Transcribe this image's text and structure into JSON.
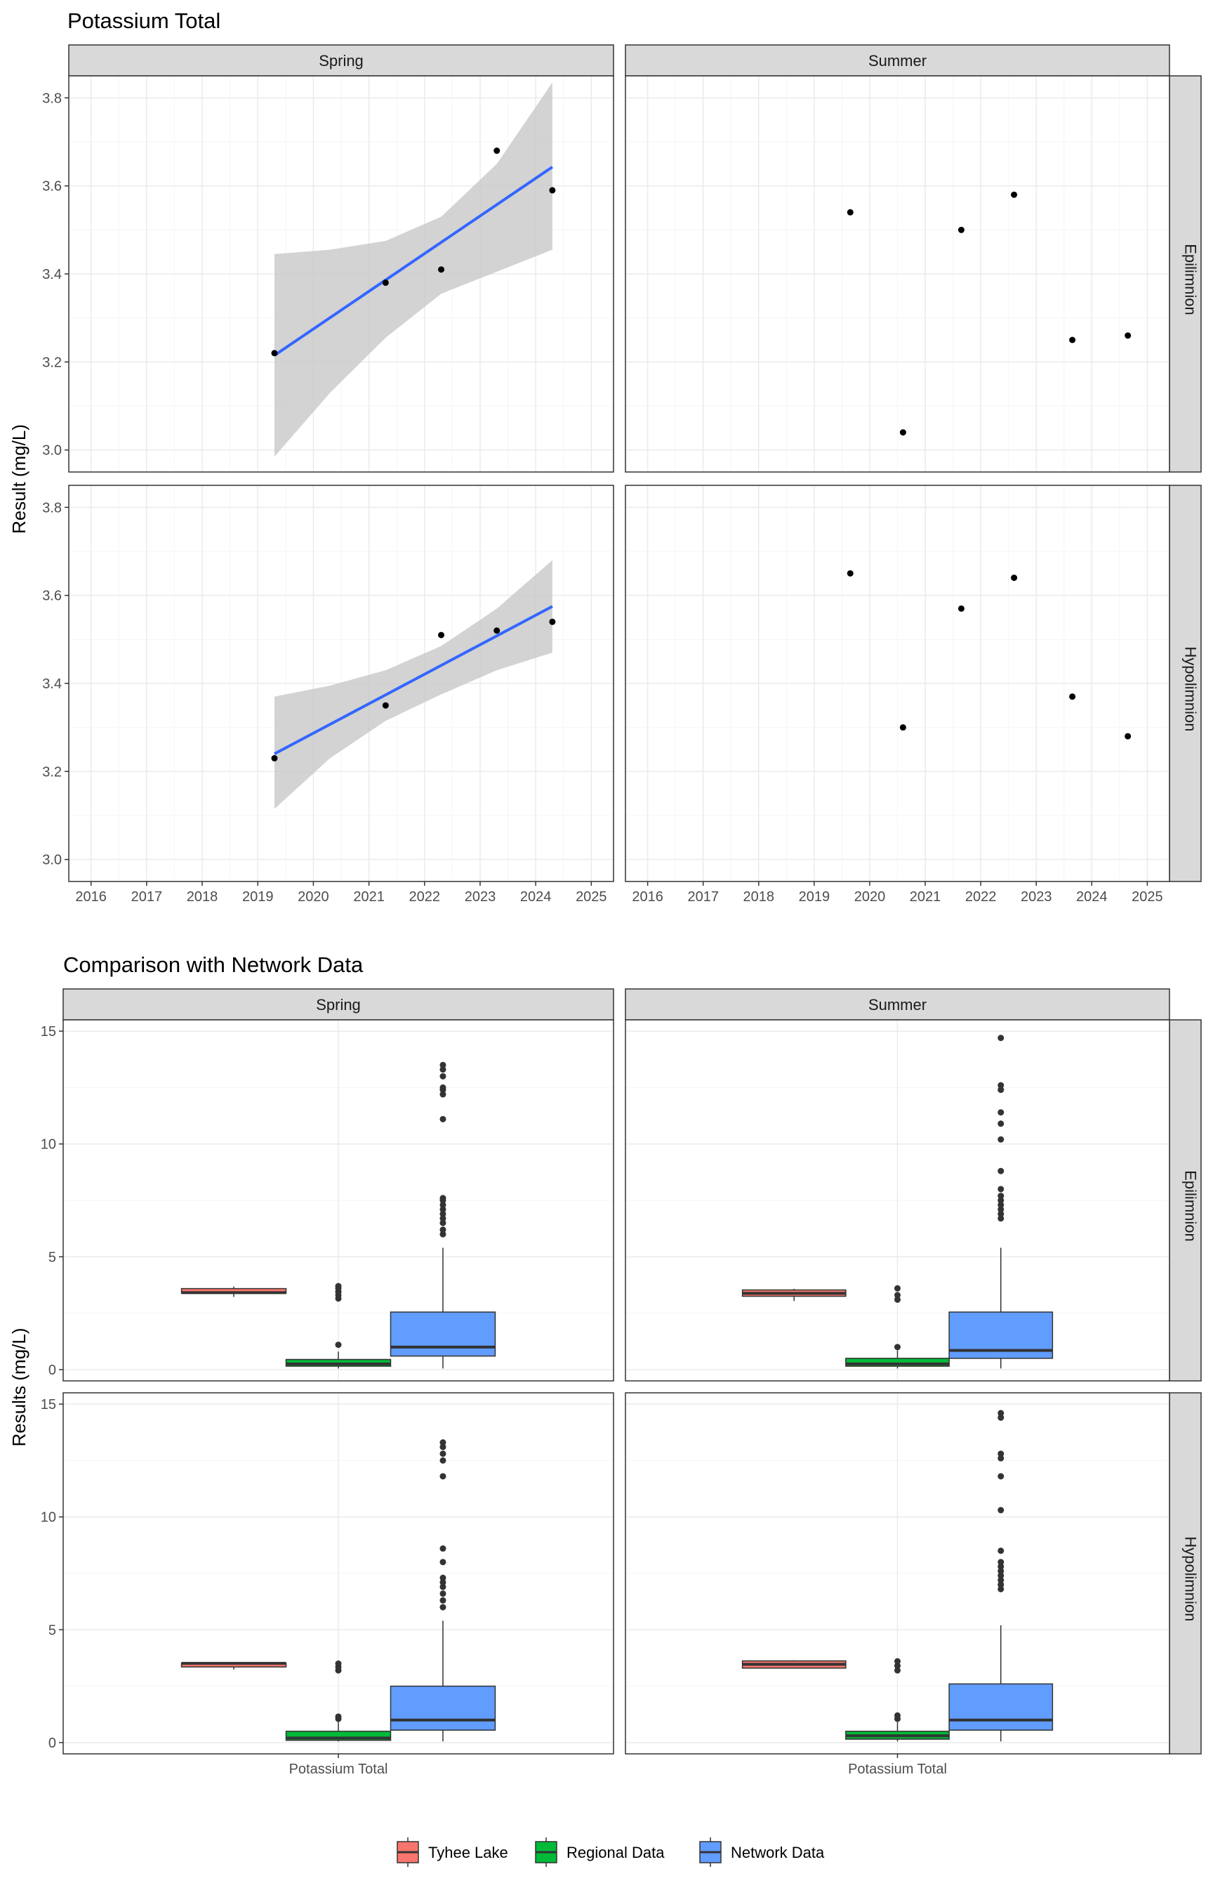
{
  "colors": {
    "strip_bg": "#d9d9d9",
    "panel_border": "#333333",
    "grid_major": "#ebebeb",
    "grid_minor": "#f5f5f5",
    "trend_line": "#3366ff",
    "ci_band": "#c8c8c8",
    "point": "#000000",
    "outlier": "#333333",
    "tyhee": "#f8766d",
    "regional": "#00ba38",
    "network": "#619cff"
  },
  "chart_data": [
    {
      "type": "scatter",
      "title": "Potassium Total",
      "ylabel": "Result (mg/L)",
      "xlabel": "",
      "xlim": [
        2015.6,
        2025.4
      ],
      "ylim": [
        2.95,
        3.85
      ],
      "x_ticks": [
        2016,
        2017,
        2018,
        2019,
        2020,
        2021,
        2022,
        2023,
        2024,
        2025
      ],
      "x_tick_labels": [
        "2016",
        "2017",
        "2018",
        "2019",
        "2020",
        "2021",
        "2022",
        "2023",
        "2024",
        "2025"
      ],
      "y_ticks": [
        3.0,
        3.2,
        3.4,
        3.6,
        3.8
      ],
      "y_tick_labels": [
        "3.0",
        "3.2",
        "3.4",
        "3.6",
        "3.8"
      ],
      "grid": true,
      "col_facets": [
        "Spring",
        "Summer"
      ],
      "row_facets": [
        "Epilimnion",
        "Hypolimnion"
      ],
      "panels": [
        {
          "col": "Spring",
          "row": "Epilimnion",
          "points": [
            [
              2019.3,
              3.22
            ],
            [
              2021.3,
              3.38
            ],
            [
              2022.3,
              3.41
            ],
            [
              2023.3,
              3.68
            ],
            [
              2024.3,
              3.59
            ]
          ],
          "trend": {
            "x": [
              2019.3,
              2024.3
            ],
            "y": [
              3.215,
              3.643
            ]
          },
          "ci": {
            "x": [
              2019.3,
              2020.3,
              2021.3,
              2022.3,
              2023.3,
              2024.3
            ],
            "lower": [
              2.985,
              3.13,
              3.255,
              3.355,
              3.405,
              3.455
            ],
            "upper": [
              3.445,
              3.455,
              3.475,
              3.53,
              3.65,
              3.835
            ]
          }
        },
        {
          "col": "Summer",
          "row": "Epilimnion",
          "points": [
            [
              2019.65,
              3.54
            ],
            [
              2020.6,
              3.04
            ],
            [
              2021.65,
              3.5
            ],
            [
              2022.6,
              3.58
            ],
            [
              2023.65,
              3.25
            ],
            [
              2024.65,
              3.26
            ]
          ]
        },
        {
          "col": "Spring",
          "row": "Hypolimnion",
          "points": [
            [
              2019.3,
              3.23
            ],
            [
              2021.3,
              3.35
            ],
            [
              2022.3,
              3.51
            ],
            [
              2023.3,
              3.52
            ],
            [
              2024.3,
              3.54
            ]
          ],
          "trend": {
            "x": [
              2019.3,
              2024.3
            ],
            "y": [
              3.24,
              3.575
            ]
          },
          "ci": {
            "x": [
              2019.3,
              2020.3,
              2021.3,
              2022.3,
              2023.3,
              2024.3
            ],
            "lower": [
              3.115,
              3.23,
              3.315,
              3.375,
              3.43,
              3.47
            ],
            "upper": [
              3.37,
              3.395,
              3.43,
              3.485,
              3.57,
              3.68
            ]
          }
        },
        {
          "col": "Summer",
          "row": "Hypolimnion",
          "points": [
            [
              2019.65,
              3.65
            ],
            [
              2020.6,
              3.3
            ],
            [
              2021.65,
              3.57
            ],
            [
              2022.6,
              3.64
            ],
            [
              2023.65,
              3.37
            ],
            [
              2024.65,
              3.28
            ]
          ]
        }
      ]
    },
    {
      "type": "box",
      "title": "Comparison with Network Data",
      "ylabel": "Results (mg/L)",
      "xlabel": "",
      "categories": [
        "Potassium Total"
      ],
      "ylim": [
        -0.5,
        15.5
      ],
      "y_ticks": [
        0,
        5,
        10,
        15
      ],
      "y_tick_labels": [
        "0",
        "5",
        "10",
        "15"
      ],
      "grid": true,
      "legend": {
        "position": "bottom",
        "entries": [
          "Tyhee Lake",
          "Regional Data",
          "Network Data"
        ]
      },
      "col_facets": [
        "Spring",
        "Summer"
      ],
      "row_facets": [
        "Epilimnion",
        "Hypolimnion"
      ],
      "panels": [
        {
          "col": "Spring",
          "row": "Epilimnion",
          "boxes": [
            {
              "group": "Tyhee Lake",
              "whisker_low": 3.22,
              "q1": 3.38,
              "median": 3.41,
              "q3": 3.59,
              "whisker_high": 3.68,
              "outliers": []
            },
            {
              "group": "Regional Data",
              "whisker_low": 0.05,
              "q1": 0.15,
              "median": 0.25,
              "q3": 0.45,
              "whisker_high": 0.8,
              "outliers": [
                1.1,
                3.15,
                3.3,
                3.45,
                3.6,
                3.7
              ]
            },
            {
              "group": "Network Data",
              "whisker_low": 0.05,
              "q1": 0.6,
              "median": 1.0,
              "q3": 2.55,
              "whisker_high": 5.4,
              "outliers": [
                6.0,
                6.2,
                6.5,
                6.7,
                6.9,
                7.1,
                7.3,
                7.5,
                7.6,
                11.1,
                12.2,
                12.4,
                12.5,
                13.0,
                13.3,
                13.5
              ]
            }
          ]
        },
        {
          "col": "Summer",
          "row": "Epilimnion",
          "boxes": [
            {
              "group": "Tyhee Lake",
              "whisker_low": 3.04,
              "q1": 3.25,
              "median": 3.38,
              "q3": 3.53,
              "whisker_high": 3.58,
              "outliers": []
            },
            {
              "group": "Regional Data",
              "whisker_low": 0.05,
              "q1": 0.15,
              "median": 0.25,
              "q3": 0.5,
              "whisker_high": 0.85,
              "outliers": [
                1.0,
                3.1,
                3.3,
                3.6
              ]
            },
            {
              "group": "Network Data",
              "whisker_low": 0.05,
              "q1": 0.5,
              "median": 0.85,
              "q3": 2.55,
              "whisker_high": 5.4,
              "outliers": [
                6.7,
                6.9,
                7.1,
                7.3,
                7.5,
                7.7,
                8.0,
                8.8,
                10.2,
                10.9,
                11.4,
                12.4,
                12.6,
                14.7
              ]
            }
          ]
        },
        {
          "col": "Spring",
          "row": "Hypolimnion",
          "boxes": [
            {
              "group": "Tyhee Lake",
              "whisker_low": 3.23,
              "q1": 3.35,
              "median": 3.51,
              "q3": 3.52,
              "whisker_high": 3.54,
              "outliers": []
            },
            {
              "group": "Regional Data",
              "whisker_low": 0.05,
              "q1": 0.1,
              "median": 0.2,
              "q3": 0.5,
              "whisker_high": 0.9,
              "outliers": [
                1.05,
                1.15,
                3.2,
                3.35,
                3.5
              ]
            },
            {
              "group": "Network Data",
              "whisker_low": 0.05,
              "q1": 0.55,
              "median": 1.0,
              "q3": 2.5,
              "whisker_high": 5.4,
              "outliers": [
                6.0,
                6.3,
                6.6,
                6.9,
                7.1,
                7.3,
                8.0,
                8.6,
                11.8,
                12.5,
                12.8,
                13.1,
                13.3
              ]
            }
          ]
        },
        {
          "col": "Summer",
          "row": "Hypolimnion",
          "boxes": [
            {
              "group": "Tyhee Lake",
              "whisker_low": 3.28,
              "q1": 3.3,
              "median": 3.47,
              "q3": 3.62,
              "whisker_high": 3.65,
              "outliers": []
            },
            {
              "group": "Regional Data",
              "whisker_low": 0.05,
              "q1": 0.15,
              "median": 0.3,
              "q3": 0.5,
              "whisker_high": 0.9,
              "outliers": [
                1.05,
                1.2,
                3.2,
                3.4,
                3.6
              ]
            },
            {
              "group": "Network Data",
              "whisker_low": 0.05,
              "q1": 0.55,
              "median": 1.0,
              "q3": 2.6,
              "whisker_high": 5.2,
              "outliers": [
                6.8,
                7.0,
                7.2,
                7.4,
                7.6,
                7.8,
                8.0,
                8.5,
                10.3,
                11.8,
                12.6,
                12.8,
                14.4,
                14.6
              ]
            }
          ]
        }
      ]
    }
  ]
}
